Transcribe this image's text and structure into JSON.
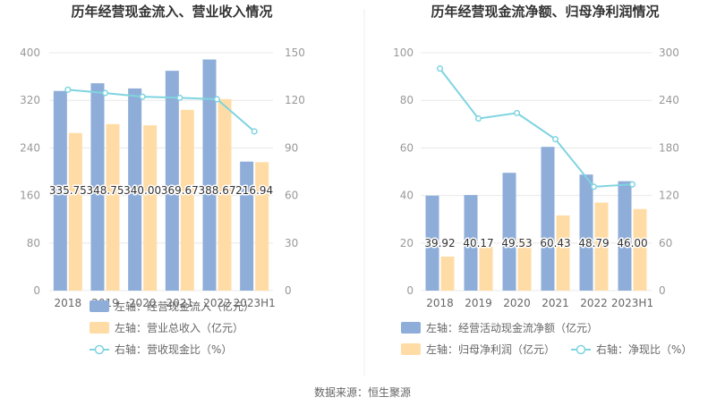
{
  "colors": {
    "bar_blue": "#8eadd9",
    "bar_orange": "#ffdca5",
    "line_cyan": "#7fd4e0",
    "grid": "#e8e8e8",
    "divider": "#eeeeee"
  },
  "source_text": "数据来源：恒生聚源",
  "chart_data": [
    {
      "type": "bar",
      "title": "历年经营现金流入、营业收入情况",
      "categories": [
        "2018",
        "2019",
        "2020",
        "2021",
        "2022",
        "2023H1"
      ],
      "left_axis": {
        "min": 0,
        "max": 400,
        "ticks": [
          "0",
          "80",
          "160",
          "240",
          "320",
          "400"
        ]
      },
      "right_axis": {
        "min": 0,
        "max": 150,
        "ticks": [
          "0",
          "30",
          "60",
          "90",
          "120",
          "150"
        ]
      },
      "series": [
        {
          "name": "左轴：经营现金流入（亿元）",
          "axis": "left",
          "kind": "bar",
          "color": "#8eadd9",
          "values": [
            335.75,
            348.75,
            340.0,
            369.67,
            388.67,
            216.94
          ],
          "labels": [
            "335.75",
            "348.75",
            "340.00",
            "369.67",
            "388.67",
            "216.94"
          ]
        },
        {
          "name": "左轴：营业总收入（亿元）",
          "axis": "left",
          "kind": "bar",
          "color": "#ffdca5",
          "values": [
            265,
            280,
            278,
            304,
            322,
            216
          ]
        },
        {
          "name": "右轴：营收现金比（%）",
          "axis": "right",
          "kind": "line",
          "color": "#7fd4e0",
          "values": [
            126.7,
            124.6,
            122.3,
            121.6,
            120.7,
            100.4
          ]
        }
      ]
    },
    {
      "type": "bar",
      "title": "历年经营现金流净额、归母净利润情况",
      "categories": [
        "2018",
        "2019",
        "2020",
        "2021",
        "2022",
        "2023H1"
      ],
      "left_axis": {
        "min": 0,
        "max": 100,
        "ticks": [
          "0",
          "20",
          "40",
          "60",
          "80",
          "100"
        ]
      },
      "right_axis": {
        "min": 0,
        "max": 300,
        "ticks": [
          "0",
          "60",
          "120",
          "180",
          "240",
          "300"
        ]
      },
      "series": [
        {
          "name": "左轴：经营活动现金流净额（亿元）",
          "axis": "left",
          "kind": "bar",
          "color": "#8eadd9",
          "values": [
            39.92,
            40.17,
            49.53,
            60.43,
            48.79,
            46.0
          ],
          "labels": [
            "39.92",
            "40.17",
            "49.53",
            "60.43",
            "48.79",
            "46.00"
          ]
        },
        {
          "name": "左轴：归母净利润（亿元）",
          "axis": "left",
          "kind": "bar",
          "color": "#ffdca5",
          "values": [
            14.3,
            18.5,
            22.2,
            31.6,
            37.0,
            34.3
          ]
        },
        {
          "name": "右轴：净现比（%）",
          "axis": "right",
          "kind": "line",
          "color": "#7fd4e0",
          "values": [
            280,
            217,
            224,
            191,
            131,
            134
          ]
        }
      ]
    }
  ]
}
